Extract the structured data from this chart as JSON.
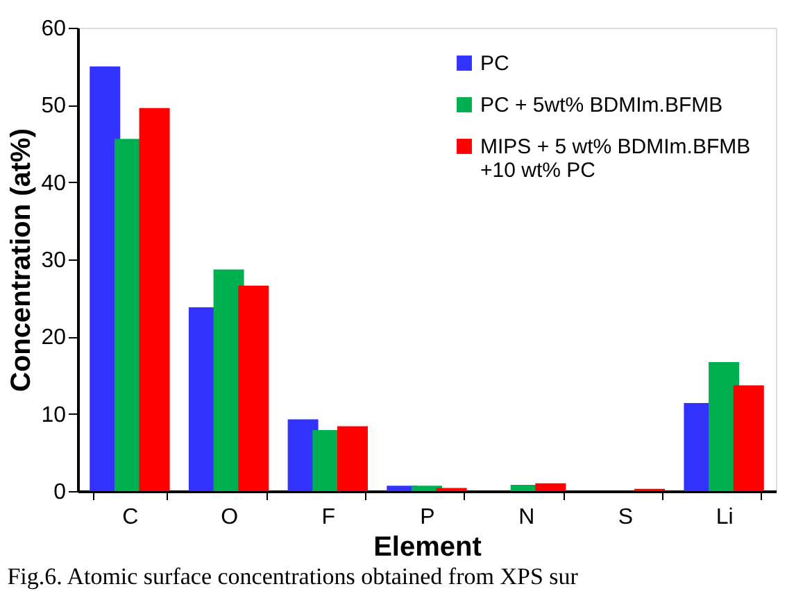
{
  "chart_data": {
    "type": "bar",
    "xlabel": "Element",
    "ylabel": "Concentration (at%)",
    "categories": [
      "C",
      "O",
      "F",
      "P",
      "N",
      "S",
      "Li"
    ],
    "series": [
      {
        "name": "PC",
        "color": "#3333ff",
        "values": [
          55,
          23.8,
          9.3,
          0.7,
          0,
          0,
          11.4
        ]
      },
      {
        "name": "PC + 5wt% BDMIm.BFMB",
        "color": "#00b050",
        "values": [
          45.6,
          28.7,
          7.9,
          0.7,
          0.8,
          0,
          16.7
        ]
      },
      {
        "name": "MIPS + 5 wt% BDMIm.BFMB\n+10 wt% PC",
        "color": "#ff0000",
        "values": [
          49.6,
          26.6,
          8.4,
          0.4,
          1.0,
          0.3,
          13.7
        ]
      }
    ],
    "ylim": [
      0,
      60
    ],
    "yticks": [
      0,
      10,
      20,
      30,
      40,
      50,
      60
    ],
    "grid": false,
    "legend": "top right",
    "annotations": [
      "Fig.6. Atomic surface concentrations obtained from XPS sur"
    ]
  }
}
